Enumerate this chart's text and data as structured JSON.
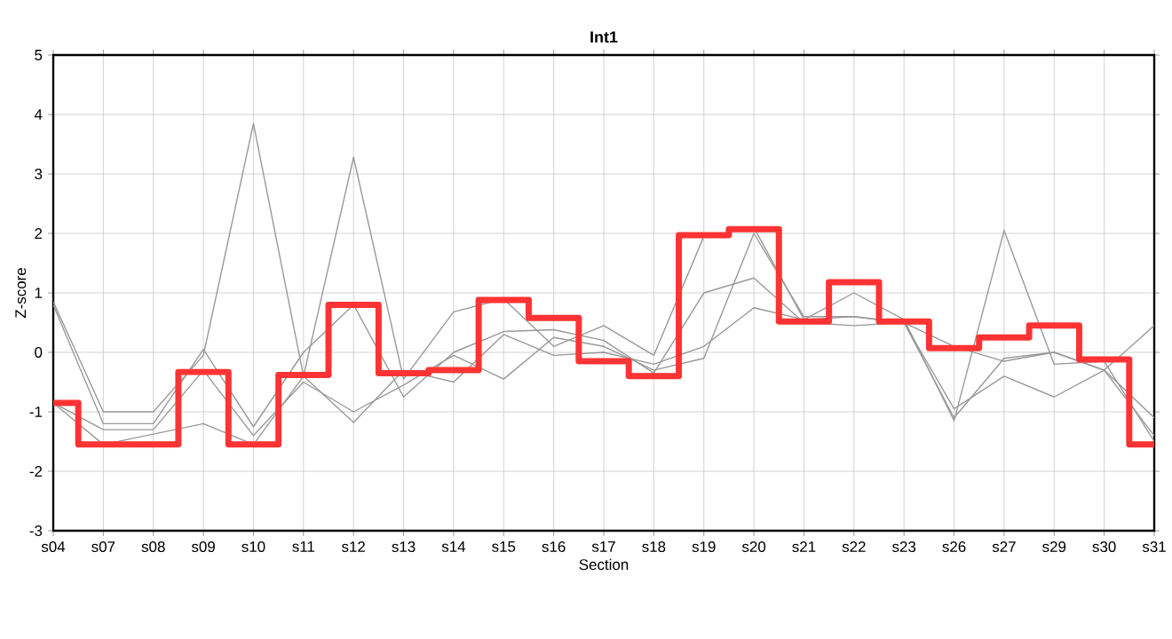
{
  "chart_data": {
    "type": "line",
    "title": "Int1",
    "xlabel": "Section",
    "ylabel": "Z-score",
    "categories": [
      "s04",
      "s07",
      "s08",
      "s09",
      "s10",
      "s11",
      "s12",
      "s13",
      "s14",
      "s15",
      "s16",
      "s17",
      "s18",
      "s19",
      "s20",
      "s21",
      "s22",
      "s23",
      "s26",
      "s27",
      "s29",
      "s30",
      "s31"
    ],
    "ylim": [
      -3,
      5
    ],
    "yticks": [
      -3,
      -2,
      -1,
      0,
      1,
      2,
      3,
      4,
      5
    ],
    "grid": true,
    "marker": "none",
    "line_style": "solid",
    "series": [
      {
        "color": "#999999",
        "values": [
          0.85,
          -1.0,
          -1.0,
          -0.05,
          3.85,
          -0.4,
          3.28,
          -0.45,
          0.68,
          0.9,
          0.1,
          0.45,
          -0.05,
          1.95,
          2.1,
          0.55,
          1.0,
          0.55,
          -1.15,
          2.05,
          -0.2,
          -0.15,
          -1.5
        ]
      },
      {
        "color": "#999999",
        "values": [
          0.8,
          -1.2,
          -1.2,
          0.05,
          -1.25,
          0.0,
          0.8,
          -0.75,
          0.0,
          0.35,
          0.38,
          0.2,
          -0.35,
          1.0,
          1.25,
          0.5,
          0.45,
          0.5,
          0.1,
          -0.15,
          0.0,
          -0.3,
          -1.1
        ]
      },
      {
        "color": "#999999",
        "values": [
          -0.85,
          -1.3,
          -1.3,
          -0.3,
          -1.4,
          -0.5,
          -1.0,
          -0.55,
          -0.05,
          -0.45,
          0.25,
          0.1,
          -0.3,
          -0.1,
          2.0,
          0.6,
          0.6,
          0.5,
          -0.95,
          -0.4,
          -0.75,
          -0.3,
          0.45
        ]
      },
      {
        "color": "#999999",
        "values": [
          -0.85,
          -1.55,
          null,
          -1.2,
          -1.55,
          -0.4,
          -1.18,
          -0.3,
          -0.5,
          0.3,
          -0.05,
          0.0,
          -0.2,
          0.1,
          0.75,
          0.55,
          0.6,
          0.5,
          -1.1,
          -0.1,
          0.0,
          -0.3,
          -1.4
        ]
      },
      {
        "type": "step",
        "color": "#ff3333",
        "values": [
          -0.85,
          -1.55,
          -1.55,
          -0.33,
          -1.55,
          -0.38,
          0.8,
          -0.35,
          -0.3,
          0.88,
          0.58,
          -0.15,
          -0.4,
          1.97,
          2.07,
          0.52,
          1.18,
          0.52,
          0.07,
          0.25,
          0.45,
          -0.12,
          -1.55
        ]
      }
    ]
  }
}
